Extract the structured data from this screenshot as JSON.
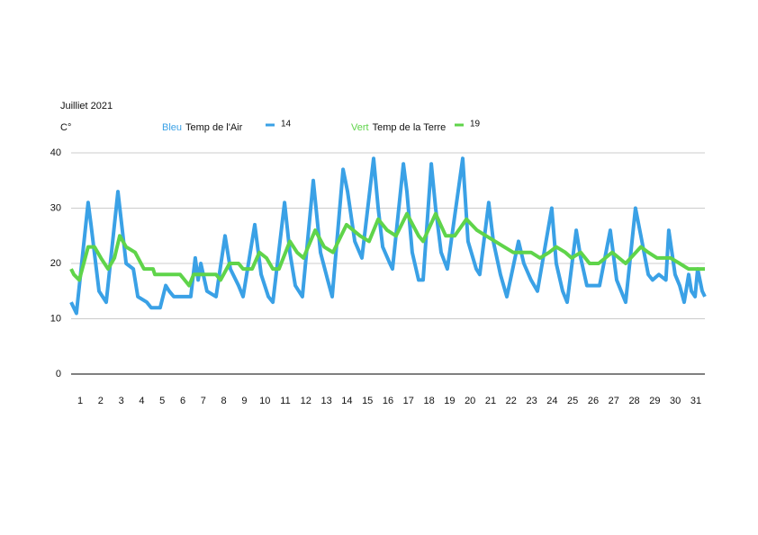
{
  "chart_data": {
    "type": "line",
    "title": "Juilliet  2021",
    "y_label": "C°",
    "ylim": [
      0,
      40
    ],
    "yticks": [
      0,
      10,
      20,
      30,
      40
    ],
    "grid": true,
    "xlim": [
      0.56,
      31.44
    ],
    "xticks": [
      1,
      2,
      3,
      4,
      5,
      6,
      7,
      8,
      9,
      10,
      11,
      12,
      13,
      14,
      15,
      16,
      17,
      18,
      19,
      20,
      21,
      22,
      23,
      24,
      25,
      26,
      27,
      28,
      29,
      30,
      31
    ],
    "series": [
      {
        "name": "Temp de l'Air",
        "color_word": "Bleu",
        "current": 14,
        "color": "#3aa1e6",
        "x": [
          0.56,
          0.82,
          1.39,
          1.53,
          1.92,
          2.27,
          2.84,
          3.24,
          3.59,
          3.81,
          4.25,
          4.46,
          4.9,
          5.17,
          5.34,
          5.56,
          6.39,
          6.61,
          6.75,
          6.88,
          7.18,
          7.62,
          8.06,
          8.32,
          8.72,
          8.94,
          9.51,
          9.82,
          10.17,
          10.39,
          10.96,
          11.22,
          11.48,
          11.83,
          12.36,
          12.71,
          13.06,
          13.28,
          13.81,
          14.03,
          14.38,
          14.73,
          15.3,
          15.52,
          15.74,
          16.09,
          16.22,
          16.75,
          16.92,
          17.18,
          17.49,
          17.71,
          18.11,
          18.32,
          18.59,
          18.89,
          19.64,
          19.9,
          20.3,
          20.47,
          20.91,
          21.13,
          21.48,
          21.79,
          22.36,
          22.62,
          22.97,
          23.28,
          23.98,
          24.2,
          24.51,
          24.73,
          25.17,
          25.39,
          25.69,
          26.31,
          26.83,
          27.14,
          27.36,
          27.58,
          28.06,
          28.32,
          28.68,
          28.89,
          29.2,
          29.54,
          29.68,
          29.99,
          30.21,
          30.43,
          30.65,
          30.78,
          30.96,
          31.09,
          31.31,
          31.44
        ],
        "values": [
          13,
          11,
          31,
          27,
          15,
          13,
          33,
          20,
          19,
          14,
          13,
          12,
          12,
          16,
          15,
          14,
          14,
          21,
          17,
          20,
          15,
          14,
          25,
          19,
          16,
          14,
          27,
          18,
          14,
          13,
          31,
          22,
          16,
          14,
          35,
          22,
          17,
          14,
          37,
          33,
          24,
          21,
          39,
          30,
          23,
          20,
          19,
          38,
          33,
          22,
          17,
          17,
          38,
          30,
          22,
          19,
          39,
          24,
          19,
          18,
          31,
          24,
          18,
          14,
          24,
          20,
          17,
          15,
          30,
          20,
          15,
          13,
          26,
          21,
          16,
          16,
          26,
          17,
          15,
          13,
          30,
          25,
          18,
          17,
          18,
          17,
          26,
          18,
          16,
          13,
          18,
          15,
          14,
          19,
          15,
          14
        ]
      },
      {
        "name": "Temp de la Terre",
        "color_word": "Vert",
        "current": 19,
        "color": "#5fd44a",
        "x": [
          0.56,
          0.69,
          0.96,
          1.39,
          1.7,
          2.01,
          2.36,
          2.67,
          2.93,
          3.24,
          3.68,
          4.11,
          4.55,
          4.64,
          5.87,
          6.09,
          6.31,
          6.53,
          7.62,
          7.84,
          8.28,
          8.72,
          8.94,
          9.38,
          9.73,
          10.08,
          10.39,
          10.69,
          11.22,
          11.57,
          11.88,
          12.45,
          12.89,
          13.32,
          13.98,
          14.64,
          15.08,
          15.52,
          15.96,
          16.39,
          16.92,
          17.49,
          17.71,
          18.32,
          18.81,
          19.25,
          19.82,
          20.34,
          20.78,
          21.22,
          21.66,
          22.1,
          22.97,
          23.41,
          23.85,
          24.2,
          24.64,
          24.95,
          25.39,
          25.82,
          26.26,
          26.92,
          27.58,
          28.32,
          28.68,
          29.11,
          29.77,
          30.21,
          30.64,
          30.87,
          31.44
        ],
        "values": [
          19,
          18,
          17,
          23,
          23,
          21,
          19,
          21,
          25,
          23,
          22,
          19,
          19,
          18,
          18,
          17,
          16,
          18,
          18,
          17,
          20,
          20,
          19,
          19,
          22,
          21,
          19,
          19,
          24,
          22,
          21,
          26,
          23,
          22,
          27,
          25,
          24,
          28,
          26,
          25,
          29,
          25,
          24,
          29,
          25,
          25,
          28,
          26,
          25,
          24,
          23,
          22,
          22,
          21,
          22,
          23,
          22,
          21,
          22,
          20,
          20,
          22,
          20,
          23,
          22,
          21,
          21,
          20,
          19,
          19,
          19
        ]
      }
    ]
  }
}
